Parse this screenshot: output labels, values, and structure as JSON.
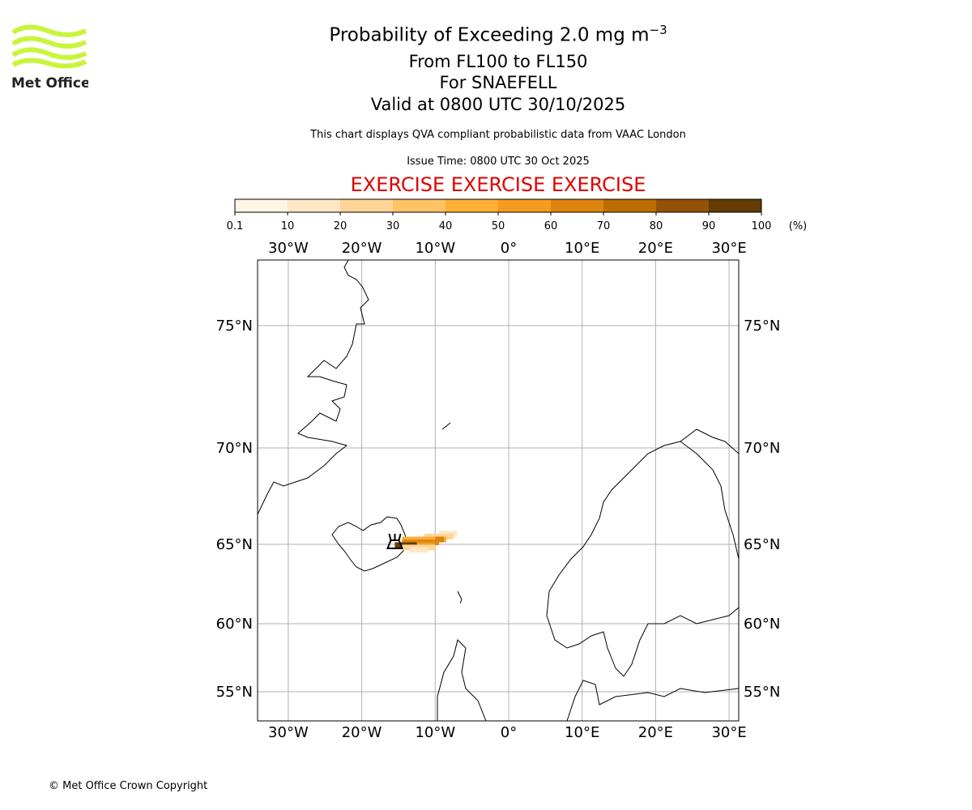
{
  "logo": {
    "text": "Met Office",
    "color": "#c8f53c"
  },
  "header": {
    "title_main": "Probability of Exceeding 2.0 mg m",
    "title_sup": "−3",
    "levels": "From FL100 to FL150",
    "volcano": "For SNAEFELL",
    "valid": "Valid at 0800 UTC 30/10/2025",
    "disclaimer": "This chart displays QVA compliant probabilistic data from VAAC London",
    "issue_time": "Issue Time: 0800 UTC 30 Oct 2025",
    "exercise": "EXERCISE EXERCISE EXERCISE"
  },
  "colorbar": {
    "ticks": [
      "0.1",
      "10",
      "20",
      "30",
      "40",
      "50",
      "60",
      "70",
      "80",
      "90",
      "100"
    ],
    "unit": "(%)",
    "colors": [
      "#fff5e5",
      "#ffe6c4",
      "#ffd597",
      "#ffc265",
      "#ffae36",
      "#f59c1e",
      "#dd8310",
      "#bd6c04",
      "#945206",
      "#643c04"
    ]
  },
  "map": {
    "lon_labels": [
      "30°W",
      "20°W",
      "10°W",
      "0°",
      "10°E",
      "20°E",
      "30°E"
    ],
    "lon_values": [
      -30,
      -20,
      -10,
      0,
      10,
      20,
      30
    ],
    "lat_labels": [
      "75°N",
      "70°N",
      "65°N",
      "60°N",
      "55°N"
    ],
    "lat_values": [
      75,
      70,
      65,
      60,
      55
    ],
    "grid_color": "#b0b0b0",
    "volcano_marker": {
      "lon": -15.6,
      "lat": 64.95
    },
    "plume": [
      {
        "lat": 65.55,
        "lon_from": -9.5,
        "lon_to": -7.0,
        "prob": 10
      },
      {
        "lat": 65.4,
        "lon_from": -11.5,
        "lon_to": -7.5,
        "prob": 20
      },
      {
        "lat": 65.25,
        "lon_from": -14.5,
        "lon_to": -8.5,
        "prob": 40
      },
      {
        "lat": 65.25,
        "lon_from": -10.0,
        "lon_to": -8.8,
        "prob": 60
      },
      {
        "lat": 65.1,
        "lon_from": -14.5,
        "lon_to": -9.5,
        "prob": 60
      },
      {
        "lat": 64.95,
        "lon_from": -15.5,
        "lon_to": -12.5,
        "prob": 90
      },
      {
        "lat": 64.95,
        "lon_from": -12.5,
        "lon_to": -10.0,
        "prob": 50
      },
      {
        "lat": 64.8,
        "lon_from": -14.5,
        "lon_to": -10.0,
        "prob": 20
      },
      {
        "lat": 64.65,
        "lon_from": -13.5,
        "lon_to": -11.0,
        "prob": 10
      }
    ]
  },
  "footer": {
    "copyright": "© Met Office Crown Copyright"
  }
}
